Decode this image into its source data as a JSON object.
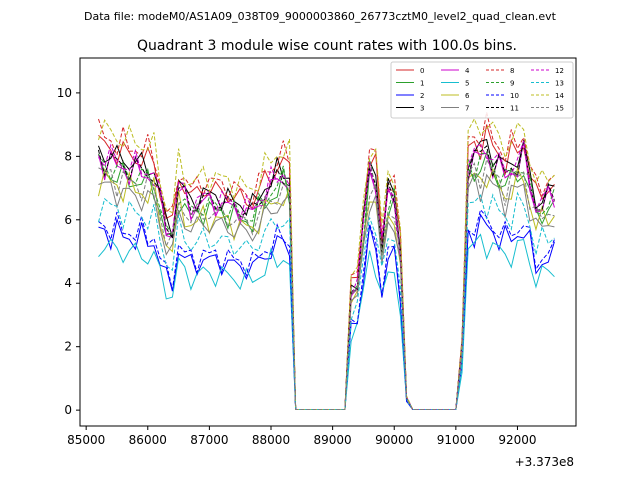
{
  "figure": {
    "top_caption": "Data file: modeM0/AS1A09_038T09_9000003860_26773cztM0_level2_quad_clean.evt",
    "offset_label": "+3.373e8"
  },
  "chart_data": {
    "type": "line",
    "title": "Quadrant 3 module wise count rates with 100.0s bins.",
    "xlabel": "",
    "ylabel": "",
    "xlim": [
      84900,
      92950
    ],
    "ylim": [
      -0.5,
      11.1
    ],
    "x_offset": "+3.373e8",
    "x_ticks": [
      85000,
      86000,
      87000,
      88000,
      89000,
      90000,
      91000,
      92000
    ],
    "x_tick_labels": [
      "85000",
      "86000",
      "87000",
      "88000",
      "89000",
      "90000",
      "91000",
      "92000"
    ],
    "y_ticks": [
      0,
      2,
      4,
      6,
      8,
      10
    ],
    "y_tick_labels": [
      "0",
      "2",
      "4",
      "6",
      "8",
      "10"
    ],
    "grid": false,
    "legend_placement": "top-right",
    "segments": [
      {
        "start": 85200,
        "end": 88300
      },
      {
        "start": 88400,
        "end": 89200,
        "zero": true
      },
      {
        "start": 89300,
        "end": 90000
      },
      {
        "start": 90100,
        "end": 90200
      },
      {
        "start": 90300,
        "end": 91000,
        "zero": true
      },
      {
        "start": 91100,
        "end": 92600
      }
    ],
    "profile_points": [
      {
        "x": 85200,
        "v": 1.0
      },
      {
        "x": 85500,
        "v": 0.97
      },
      {
        "x": 85800,
        "v": 0.95
      },
      {
        "x": 86100,
        "v": 0.93
      },
      {
        "x": 86300,
        "v": 0.72
      },
      {
        "x": 86400,
        "v": 0.7
      },
      {
        "x": 86500,
        "v": 0.88
      },
      {
        "x": 86700,
        "v": 0.8
      },
      {
        "x": 86900,
        "v": 0.83
      },
      {
        "x": 87200,
        "v": 0.82
      },
      {
        "x": 87400,
        "v": 0.8
      },
      {
        "x": 87700,
        "v": 0.78
      },
      {
        "x": 87900,
        "v": 0.86
      },
      {
        "x": 88200,
        "v": 0.93
      },
      {
        "x": 88300,
        "v": 0.9
      },
      {
        "x": 88400,
        "v": 0.0
      },
      {
        "x": 89200,
        "v": 0.0
      },
      {
        "x": 89300,
        "v": 0.47
      },
      {
        "x": 89400,
        "v": 0.5
      },
      {
        "x": 89600,
        "v": 0.95
      },
      {
        "x": 89700,
        "v": 0.9
      },
      {
        "x": 89800,
        "v": 0.65
      },
      {
        "x": 89900,
        "v": 0.84
      },
      {
        "x": 90000,
        "v": 0.84
      },
      {
        "x": 90100,
        "v": 0.62
      },
      {
        "x": 90200,
        "v": 0.05
      },
      {
        "x": 90300,
        "v": 0.0
      },
      {
        "x": 91000,
        "v": 0.0
      },
      {
        "x": 91100,
        "v": 0.25
      },
      {
        "x": 91200,
        "v": 0.98
      },
      {
        "x": 91500,
        "v": 1.02
      },
      {
        "x": 91800,
        "v": 0.93
      },
      {
        "x": 92100,
        "v": 1.0
      },
      {
        "x": 92300,
        "v": 0.8
      },
      {
        "x": 92600,
        "v": 0.85
      }
    ],
    "series": [
      {
        "name": "0",
        "base": 8.4,
        "color": "#d62728",
        "dash": false,
        "phase": 0.3
      },
      {
        "name": "1",
        "base": 7.6,
        "color": "#2ca02c",
        "dash": false,
        "phase": 1.1
      },
      {
        "name": "2",
        "base": 5.7,
        "color": "#0000ff",
        "dash": false,
        "phase": 2.0
      },
      {
        "name": "3",
        "base": 8.2,
        "color": "#000000",
        "dash": false,
        "phase": 2.7
      },
      {
        "name": "4",
        "base": 7.9,
        "color": "#cc00cc",
        "dash": false,
        "phase": 3.4
      },
      {
        "name": "5",
        "base": 5.2,
        "color": "#17becf",
        "dash": false,
        "phase": 4.2
      },
      {
        "name": "6",
        "base": 7.3,
        "color": "#bcbd22",
        "dash": false,
        "phase": 5.0
      },
      {
        "name": "7",
        "base": 7.1,
        "color": "#7f7f7f",
        "dash": false,
        "phase": 5.8
      },
      {
        "name": "8",
        "base": 8.7,
        "color": "#d62728",
        "dash": true,
        "phase": 0.7
      },
      {
        "name": "9",
        "base": 7.8,
        "color": "#2ca02c",
        "dash": true,
        "phase": 1.5
      },
      {
        "name": "10",
        "base": 5.9,
        "color": "#0000ff",
        "dash": true,
        "phase": 2.3
      },
      {
        "name": "11",
        "base": 8.0,
        "color": "#000000",
        "dash": true,
        "phase": 3.1
      },
      {
        "name": "12",
        "base": 8.1,
        "color": "#cc00cc",
        "dash": true,
        "phase": 3.9
      },
      {
        "name": "13",
        "base": 6.5,
        "color": "#17becf",
        "dash": true,
        "phase": 4.6
      },
      {
        "name": "14",
        "base": 8.9,
        "color": "#bcbd22",
        "dash": true,
        "phase": 5.3
      },
      {
        "name": "15",
        "base": 7.5,
        "color": "#7f7f7f",
        "dash": true,
        "phase": 6.0
      }
    ]
  }
}
